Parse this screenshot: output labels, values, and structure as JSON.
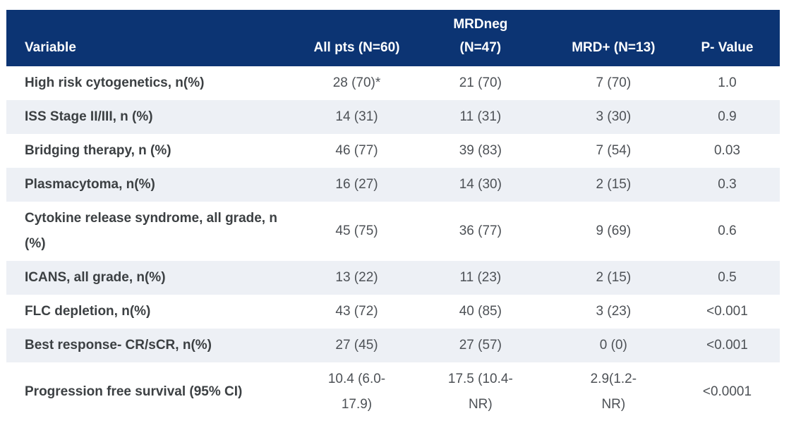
{
  "colors": {
    "header_background": "#0c3473",
    "header_text": "#ffffff",
    "row_stripe": "#edf0f5",
    "label_text": "#3c4043",
    "value_text": "#4d5156"
  },
  "table": {
    "columns": {
      "variable": {
        "label": "Variable"
      },
      "all_pts": {
        "label": "All pts (N=60)"
      },
      "mrd_neg": {
        "label_top": "MRDneg",
        "label_bottom": "(N=47)"
      },
      "mrd_pos": {
        "label": "MRD+ (N=13)"
      },
      "p_value": {
        "label": "P- Value"
      }
    },
    "rows": [
      {
        "variable": "High risk cytogenetics, n(%)",
        "all_pts": "28 (70)*",
        "mrd_neg": "21 (70)",
        "mrd_pos": "7 (70)",
        "p_value": "1.0"
      },
      {
        "variable": "ISS Stage II/III, n (%)",
        "all_pts": "14 (31)",
        "mrd_neg": "11 (31)",
        "mrd_pos": "3 (30)",
        "p_value": "0.9"
      },
      {
        "variable": "Bridging therapy, n (%)",
        "all_pts": "46 (77)",
        "mrd_neg": "39 (83)",
        "mrd_pos": "7 (54)",
        "p_value": "0.03"
      },
      {
        "variable": "Plasmacytoma, n(%)",
        "all_pts": "16 (27)",
        "mrd_neg": "14 (30)",
        "mrd_pos": "2 (15)",
        "p_value": "0.3"
      },
      {
        "variable": "Cytokine release syndrome, all grade, n (%)",
        "all_pts": "45 (75)",
        "mrd_neg": "36 (77)",
        "mrd_pos": "9 (69)",
        "p_value": "0.6"
      },
      {
        "variable": "ICANS, all grade, n(%)",
        "all_pts": "13 (22)",
        "mrd_neg": "11 (23)",
        "mrd_pos": "2 (15)",
        "p_value": "0.5"
      },
      {
        "variable": "FLC depletion, n(%)",
        "all_pts": "43 (72)",
        "mrd_neg": "40 (85)",
        "mrd_pos": "3 (23)",
        "p_value": "<0.001"
      },
      {
        "variable": "Best response- CR/sCR, n(%)",
        "all_pts": "27 (45)",
        "mrd_neg": "27 (57)",
        "mrd_pos": "0 (0)",
        "p_value": "<0.001"
      },
      {
        "variable": "Progression free survival (95% CI)",
        "all_pts": "10.4 (6.0-17.9)",
        "mrd_neg": "17.5 (10.4-NR)",
        "mrd_pos": "2.9(1.2-NR)",
        "p_value": "<0.0001"
      }
    ]
  }
}
